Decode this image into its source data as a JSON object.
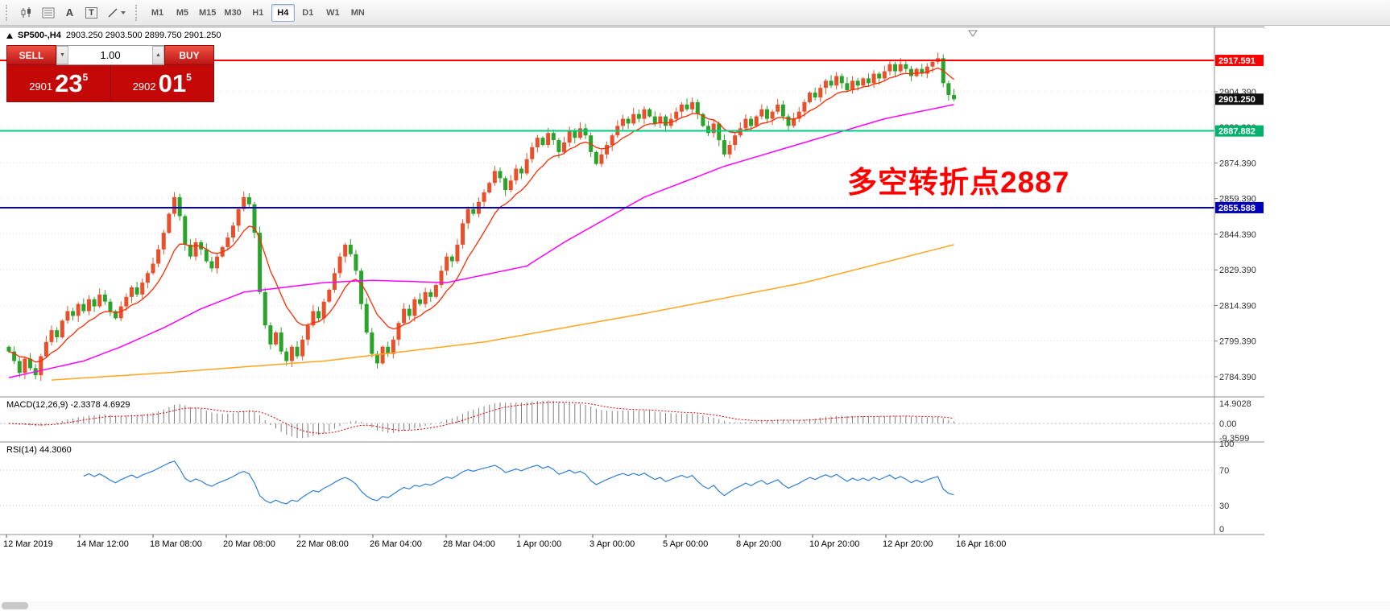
{
  "toolbar": {
    "text_tool_label": "A",
    "textbox_tool_label": "T",
    "timeframes": [
      "M1",
      "M5",
      "M15",
      "M30",
      "H1",
      "H4",
      "D1",
      "W1",
      "MN"
    ],
    "active_timeframe": "H4"
  },
  "chart": {
    "header": {
      "symbol": "SP500-,H4",
      "ohlc": "2903.250 2903.500 2899.750 2901.250"
    }
  },
  "trade": {
    "sell_label": "SELL",
    "buy_label": "BUY",
    "volume": "1.00",
    "icons": {
      "volume_down": "▼",
      "volume_up": "▲"
    },
    "bid": {
      "prefix": "2901",
      "big": "23",
      "sup": "5"
    },
    "ask": {
      "prefix": "2902",
      "big": "01",
      "sup": "5"
    }
  },
  "annotation": {
    "text": "多空转折点2887",
    "color": "#ff0000"
  },
  "price_axis": {
    "grid_labels": [
      "2904.390",
      "2889.390",
      "2874.390",
      "2859.390",
      "2844.390",
      "2829.390",
      "2814.390",
      "2799.390",
      "2784.390"
    ],
    "line_labels": [
      {
        "text": "2917.591",
        "bg": "#ff0000"
      },
      {
        "text": "2901.250",
        "bg": "#101010"
      },
      {
        "text": "2887.882",
        "bg": "#00b26e"
      },
      {
        "text": "2855.588",
        "bg": "#0000bb"
      }
    ]
  },
  "macd_panel": {
    "label": "MACD(12,26,9) -2.3378 4.6929",
    "axis": [
      "14.9028",
      "0.00",
      "-9.3599"
    ]
  },
  "rsi_panel": {
    "label": "RSI(14) 44.3060",
    "axis": [
      "100",
      "70",
      "30",
      "0"
    ]
  },
  "time_axis": {
    "labels": [
      "12 Mar 2019",
      "14 Mar 12:00",
      "18 Mar 08:00",
      "20 Mar 08:00",
      "22 Mar 08:00",
      "26 Mar 04:00",
      "28 Mar 04:00",
      "1 Apr 00:00",
      "3 Apr 00:00",
      "5 Apr 00:00",
      "8 Apr 20:00",
      "10 Apr 20:00",
      "12 Apr 20:00",
      "16 Apr 16:00"
    ]
  },
  "chart_data": {
    "type": "candlestick",
    "symbol": "SP500-",
    "timeframe": "H4",
    "ohlc_display": {
      "open": 2903.25,
      "high": 2903.5,
      "low": 2899.75,
      "close": 2901.25
    },
    "price_range": {
      "top": 2931.5,
      "bottom": 2775.9
    },
    "first_open": 2797,
    "closes": [
      2795,
      2791,
      2786,
      2792,
      2788,
      2785,
      2793,
      2799,
      2804,
      2801,
      2808,
      2812,
      2810,
      2815,
      2812,
      2817,
      2814,
      2819,
      2816,
      2812,
      2809,
      2814,
      2818,
      2822,
      2819,
      2824,
      2828,
      2832,
      2838,
      2845,
      2853,
      2860,
      2852,
      2840,
      2835,
      2841,
      2838,
      2833,
      2830,
      2835,
      2839,
      2843,
      2848,
      2855,
      2860,
      2857,
      2845,
      2820,
      2806,
      2798,
      2803,
      2795,
      2791,
      2797,
      2793,
      2800,
      2806,
      2812,
      2809,
      2816,
      2821,
      2828,
      2835,
      2840,
      2836,
      2829,
      2815,
      2803,
      2794,
      2790,
      2797,
      2794,
      2800,
      2807,
      2813,
      2810,
      2817,
      2815,
      2820,
      2818,
      2823,
      2829,
      2835,
      2833,
      2840,
      2849,
      2855,
      2853,
      2858,
      2862,
      2866,
      2871,
      2868,
      2863,
      2867,
      2872,
      2870,
      2876,
      2881,
      2885,
      2882,
      2887,
      2884,
      2879,
      2883,
      2888,
      2885,
      2889,
      2886,
      2879,
      2874,
      2878,
      2882,
      2886,
      2890,
      2893,
      2891,
      2895,
      2893,
      2897,
      2894,
      2891,
      2894,
      2890,
      2893,
      2896,
      2899,
      2897,
      2900,
      2895,
      2890,
      2887,
      2891,
      2884,
      2878,
      2882,
      2886,
      2889,
      2893,
      2890,
      2894,
      2897,
      2893,
      2896,
      2899,
      2894,
      2890,
      2893,
      2896,
      2900,
      2904,
      2902,
      2906,
      2909,
      2907,
      2911,
      2908,
      2905,
      2909,
      2907,
      2910,
      2908,
      2912,
      2910,
      2913,
      2916,
      2913,
      2916,
      2914,
      2911,
      2914,
      2912,
      2915,
      2917,
      2918.5,
      2908,
      2903,
      2901.25
    ],
    "hlines": [
      {
        "price": 2917.591,
        "color": "#ff0000"
      },
      {
        "price": 2887.882,
        "color": "#00cc7e"
      },
      {
        "price": 2855.588,
        "color": "#0000bb"
      }
    ],
    "current_price": 2901.25,
    "colors": {
      "up": "#e8502c",
      "down": "#2aa32a"
    },
    "ma": {
      "fast": {
        "type": "ema",
        "period": 10,
        "color": "#ff2a00"
      },
      "mid": {
        "color": "#ff00ff",
        "anchors": [
          [
            0,
            2784
          ],
          [
            14,
            2791
          ],
          [
            21,
            2797
          ],
          [
            29,
            2805
          ],
          [
            36,
            2813
          ],
          [
            44,
            2820
          ],
          [
            59,
            2824
          ],
          [
            68,
            2825
          ],
          [
            82,
            2824
          ],
          [
            97,
            2831
          ],
          [
            104,
            2841
          ],
          [
            119,
            2860
          ],
          [
            134,
            2873
          ],
          [
            149,
            2883
          ],
          [
            164,
            2893
          ],
          [
            177,
            2899
          ]
        ]
      },
      "slow": {
        "color": "#ffa520",
        "anchors": [
          [
            8,
            2783
          ],
          [
            29,
            2786
          ],
          [
            59,
            2791
          ],
          [
            89,
            2799
          ],
          [
            119,
            2811
          ],
          [
            149,
            2824
          ],
          [
            177,
            2840
          ]
        ]
      }
    },
    "macd": {
      "fast": 12,
      "slow": 26,
      "signal": 9,
      "main_value": -2.3378,
      "signal_value": 4.6929
    },
    "rsi": {
      "period": 14,
      "value": 44.306,
      "levels": [
        70,
        30
      ]
    },
    "annotation_price": 2887
  }
}
